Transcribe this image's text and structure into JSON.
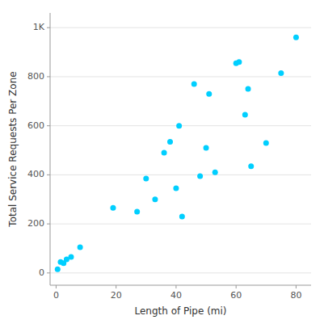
{
  "chart_data": {
    "type": "scatter",
    "xlabel": "Length of Pipe (mi)",
    "ylabel": "Total Service Requests Per Zone",
    "x": [
      0.5,
      1.5,
      2.5,
      3.5,
      5.0,
      8.0,
      19,
      27,
      30,
      33,
      36,
      38,
      40,
      41,
      42,
      46,
      48,
      50,
      51,
      53,
      60,
      61,
      63,
      64,
      65,
      70,
      75,
      80
    ],
    "values": [
      15,
      45,
      40,
      55,
      65,
      105,
      265,
      250,
      385,
      300,
      490,
      535,
      345,
      600,
      230,
      770,
      395,
      510,
      730,
      410,
      855,
      860,
      645,
      750,
      435,
      530,
      815,
      960
    ],
    "color": "#00CFFF",
    "xlim": [
      -2,
      85
    ],
    "ylim": [
      -50,
      1060
    ],
    "xticks": [
      0,
      20,
      40,
      60,
      80
    ],
    "yticks": [
      0,
      200,
      400,
      600,
      800,
      {
        "value": 1000,
        "label": "1K"
      }
    ],
    "grid": "y"
  }
}
